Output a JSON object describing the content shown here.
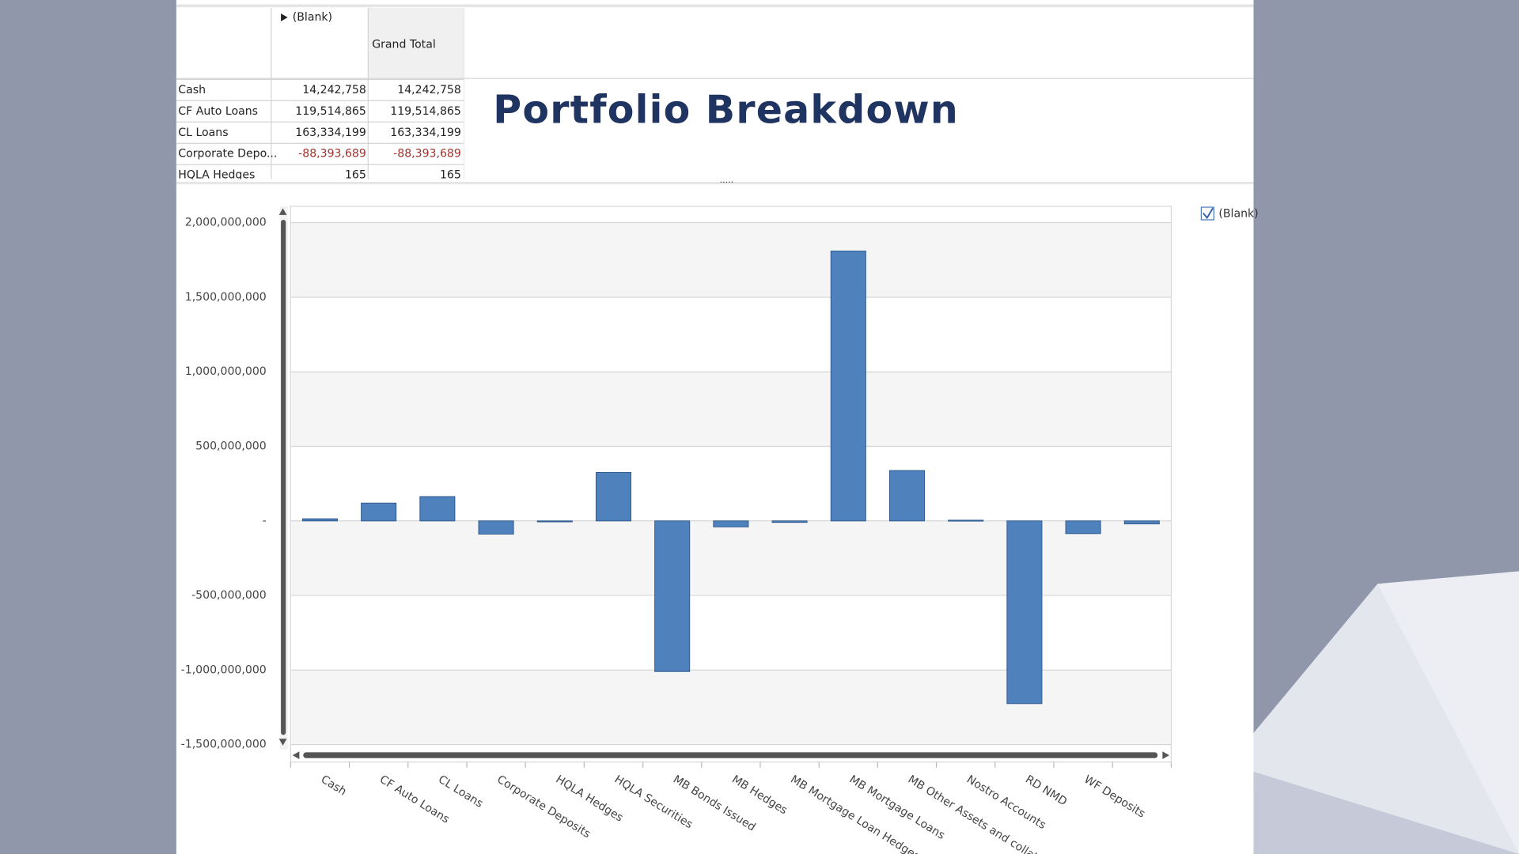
{
  "title": "Portfolio Breakdown",
  "table": {
    "column_header": "(Blank)",
    "total_header": "Grand Total",
    "rows": [
      [
        "Cash",
        "14,242,758",
        "14,242,758"
      ],
      [
        "CF Auto Loans",
        "119,514,865",
        "119,514,865"
      ],
      [
        "CL Loans",
        "163,334,199",
        "163,334,199"
      ],
      [
        "Corporate Depo...",
        "-88,393,689",
        "-88,393,689"
      ],
      [
        "HQLA Hedges",
        "165",
        "165"
      ]
    ]
  },
  "chart_data": {
    "type": "bar",
    "categories": [
      "Cash",
      "CF Auto Loans",
      "CL Loans",
      "Corporate Deposits",
      "HQLA Hedges",
      "HQLA Securities",
      "MB Bonds Issued",
      "MB Hedges",
      "MB Mortgage Loan Hedges",
      "MB Mortgage Loans",
      "MB Other Assets and collateral",
      "Nostro Accounts",
      "RD NMD",
      "WF Deposits",
      null
    ],
    "series": [
      {
        "name": "(Blank)",
        "color": "#4f81bd",
        "values": [
          14242758,
          119514865,
          163334199,
          -88393689,
          165,
          325000000,
          -1010000000,
          -40000000,
          -10000000,
          1810000000,
          338000000,
          5000000,
          -1225000000,
          -85000000,
          -20000000
        ]
      }
    ],
    "ylim": [
      -1500000000,
      2000000000
    ],
    "yticks": [
      {
        "value": -1500000000,
        "label": "-1,500,000,000"
      },
      {
        "value": -1000000000,
        "label": "-1,000,000,000"
      },
      {
        "value": -500000000,
        "label": "-500,000,000"
      },
      {
        "value": 0,
        "label": "-"
      },
      {
        "value": 500000000,
        "label": "500,000,000"
      },
      {
        "value": 1000000000,
        "label": "1,000,000,000"
      },
      {
        "value": 1500000000,
        "label": "1,500,000,000"
      },
      {
        "value": 2000000000,
        "label": "2,000,000,000"
      }
    ],
    "grid": true,
    "legend": "right"
  }
}
